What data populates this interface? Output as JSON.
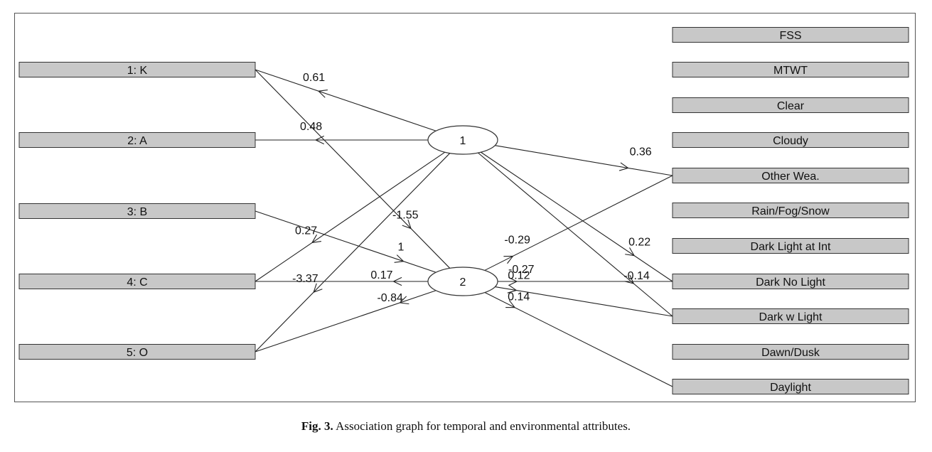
{
  "left_nodes": [
    {
      "id": "L1",
      "label": "1: K"
    },
    {
      "id": "L2",
      "label": "2: A"
    },
    {
      "id": "L3",
      "label": "3: B"
    },
    {
      "id": "L4",
      "label": "4: C"
    },
    {
      "id": "L5",
      "label": "5: O"
    }
  ],
  "right_nodes": [
    {
      "id": "R0",
      "label": "FSS"
    },
    {
      "id": "R1",
      "label": "MTWT"
    },
    {
      "id": "R2",
      "label": "Clear"
    },
    {
      "id": "R3",
      "label": "Cloudy"
    },
    {
      "id": "R4",
      "label": "Other Wea."
    },
    {
      "id": "R5",
      "label": "Rain/Fog/Snow"
    },
    {
      "id": "R6",
      "label": "Dark Light at Int"
    },
    {
      "id": "R7",
      "label": "Dark No Light"
    },
    {
      "id": "R8",
      "label": "Dark w Light"
    },
    {
      "id": "R9",
      "label": "Dawn/Dusk"
    },
    {
      "id": "R10",
      "label": "Daylight"
    }
  ],
  "hub_nodes": [
    {
      "id": "H1",
      "label": "1"
    },
    {
      "id": "H2",
      "label": "2"
    }
  ],
  "edges": [
    {
      "from": "H1",
      "to": "L1",
      "weight": "0.61"
    },
    {
      "from": "H1",
      "to": "L2",
      "weight": "0.48"
    },
    {
      "from": "H1",
      "to": "L4",
      "weight": "0.27"
    },
    {
      "from": "H1",
      "to": "L5",
      "weight": "-3.37"
    },
    {
      "from": "H1",
      "to": "R4",
      "weight": "0.36"
    },
    {
      "from": "H1",
      "to": "R7",
      "weight": "0.22"
    },
    {
      "from": "H1",
      "to": "R8",
      "weight": "-0.14"
    },
    {
      "from": "L1",
      "to": "H2",
      "weight": "-1.55"
    },
    {
      "from": "L3",
      "to": "H2",
      "weight": "1"
    },
    {
      "from": "H2",
      "to": "L4",
      "weight": "0.17"
    },
    {
      "from": "H2",
      "to": "L5",
      "weight": "-0.84"
    },
    {
      "from": "H2",
      "to": "R4",
      "weight": "-0.29"
    },
    {
      "from": "H2",
      "to": "R7",
      "weight": "-0.27"
    },
    {
      "from": "H2",
      "to": "R8",
      "weight": "0.12"
    },
    {
      "from": "H2",
      "to": "R10",
      "weight": "0.14"
    }
  ],
  "caption": {
    "label": "Fig. 3.",
    "text": "Association graph for temporal and environmental attributes."
  },
  "colors": {
    "box_fill": "#c8c8c8",
    "box_stroke": "#333333",
    "line": "#222222",
    "background": "#ffffff"
  }
}
